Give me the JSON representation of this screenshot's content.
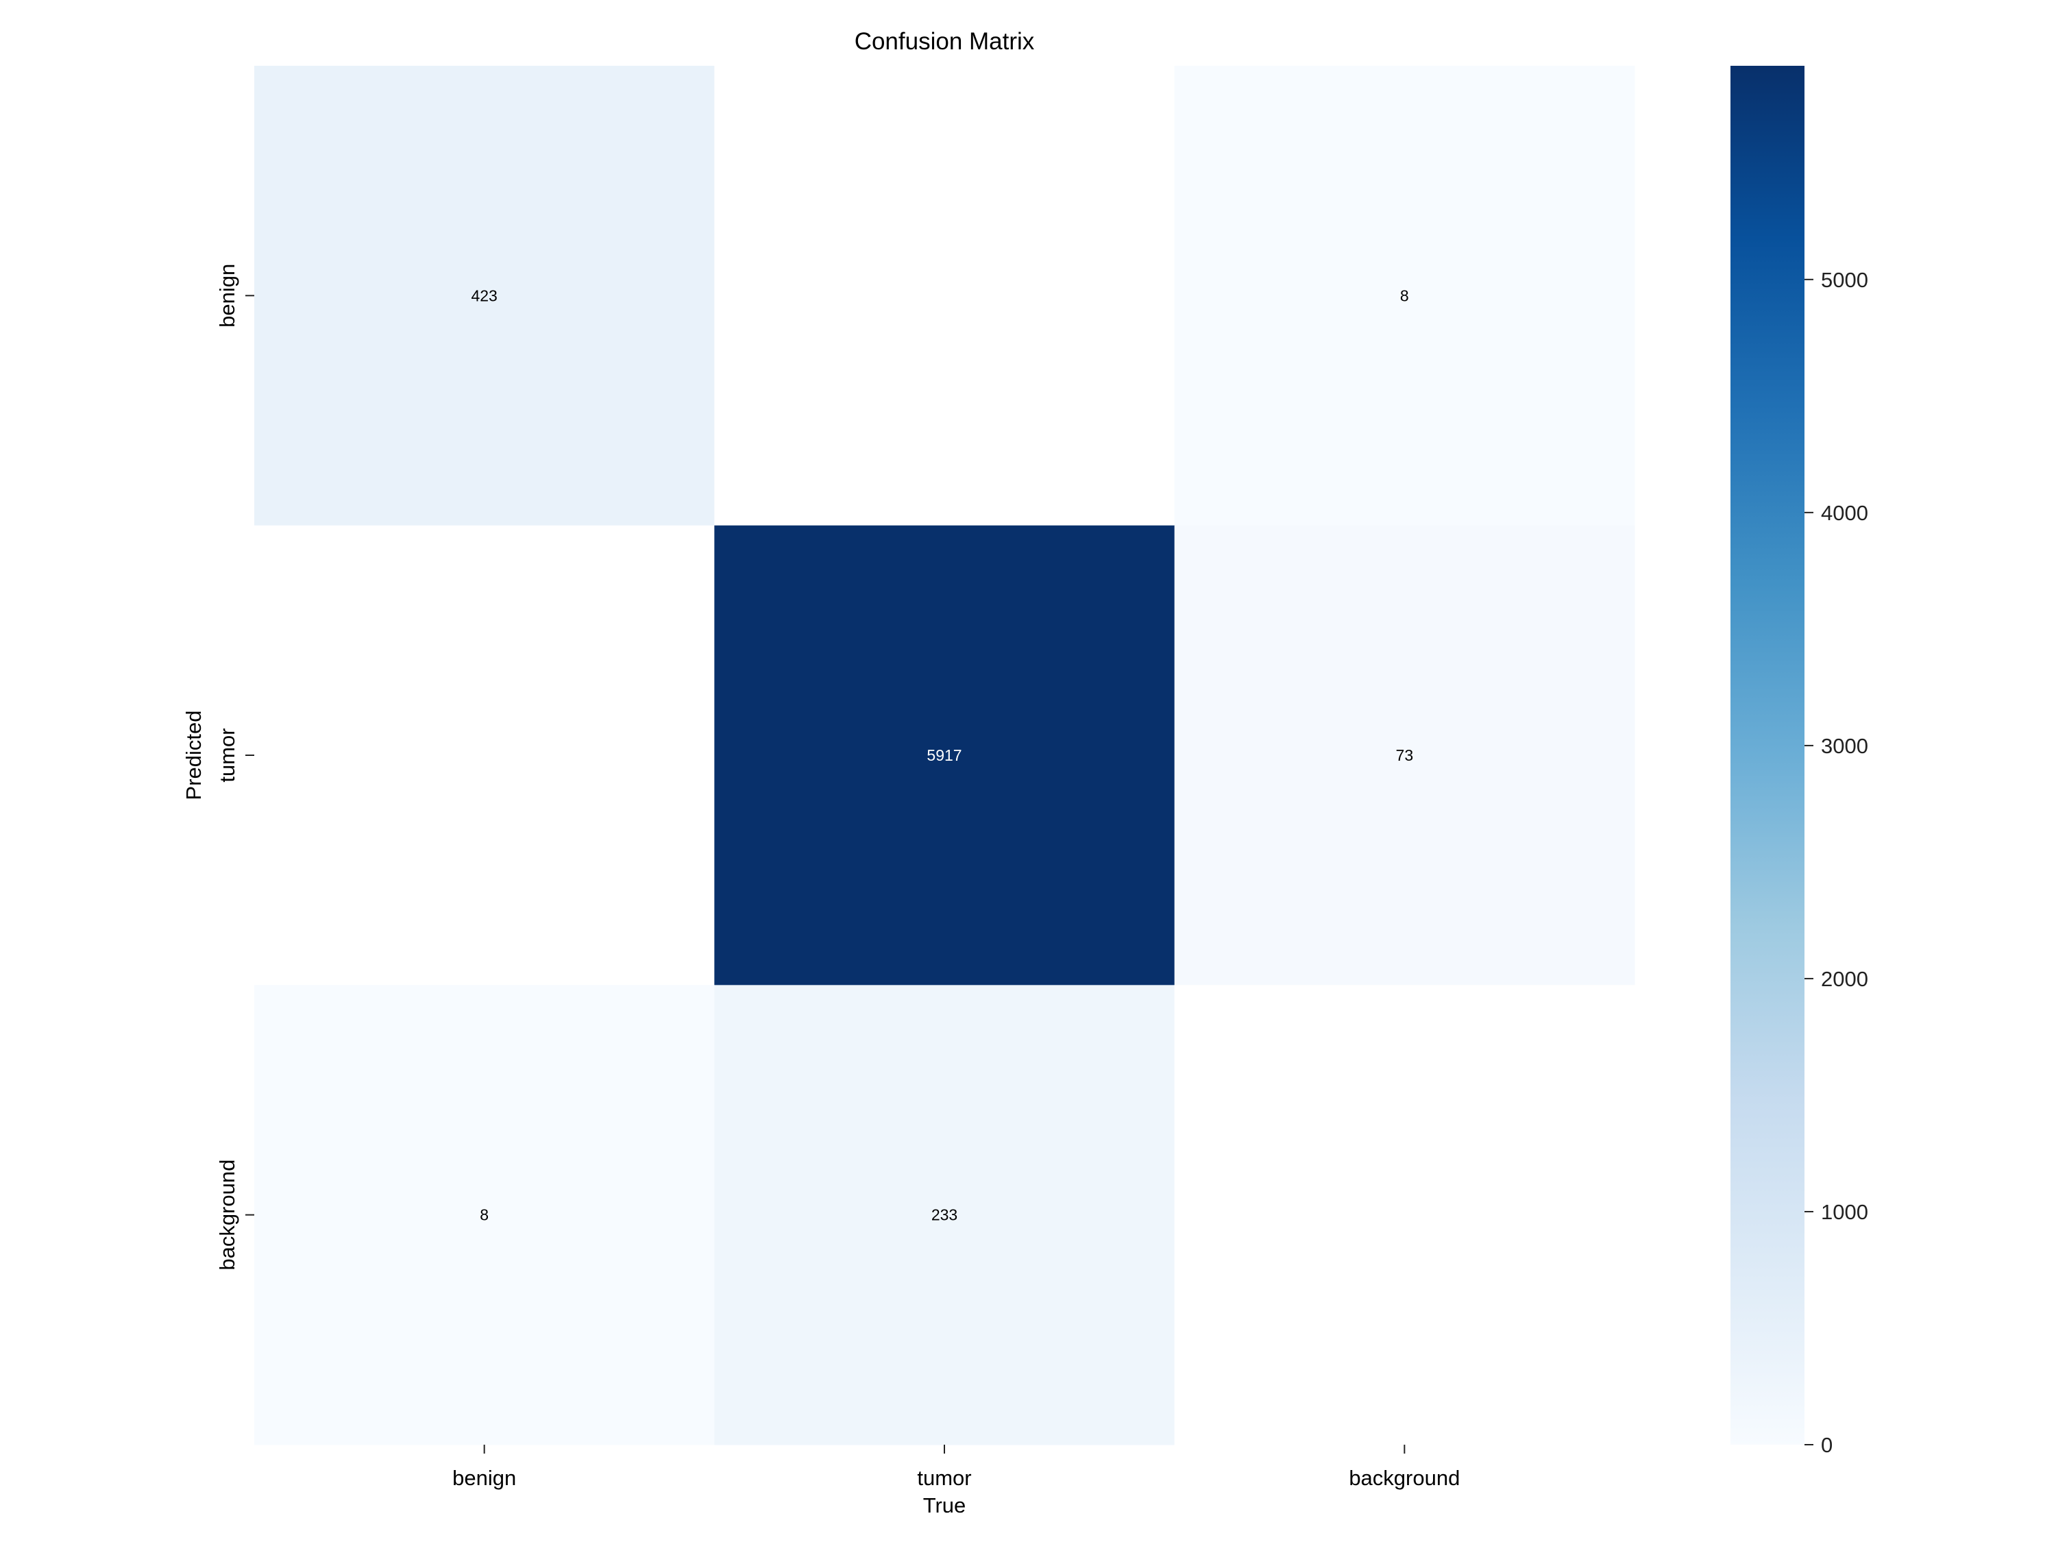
{
  "chart_data": {
    "type": "heatmap",
    "title": "Confusion Matrix",
    "xlabel": "True",
    "ylabel": "Predicted",
    "x_categories": [
      "benign",
      "tumor",
      "background"
    ],
    "y_categories": [
      "benign",
      "tumor",
      "background"
    ],
    "values": [
      [
        423,
        0,
        8
      ],
      [
        0,
        5917,
        73
      ],
      [
        8,
        233,
        0
      ]
    ],
    "zero_cells_blank": true,
    "colormap": "Blues",
    "colorbar": {
      "range": [
        0,
        5917
      ],
      "ticks": [
        0,
        1000,
        2000,
        3000,
        4000,
        5000
      ],
      "tick_labels": [
        "0",
        "1000",
        "2000",
        "3000",
        "4000",
        "5000"
      ]
    },
    "colors": {
      "low": "#f7fbff",
      "high": "#08306b",
      "text_dark": "#000000",
      "text_light": "#ffffff"
    }
  }
}
